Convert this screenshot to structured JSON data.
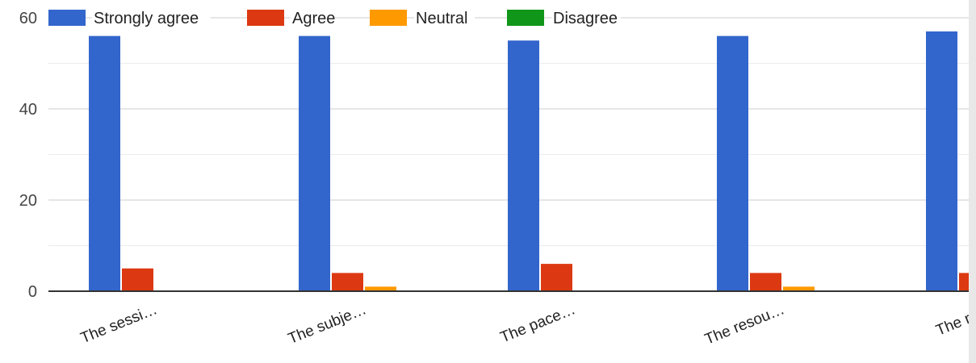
{
  "chart_data": {
    "type": "bar",
    "categories": [
      "The sessi…",
      "The subje…",
      "The pace…",
      "The resou…",
      "The reso"
    ],
    "series": [
      {
        "name": "Strongly agree",
        "color": "#3366cc",
        "values": [
          56,
          56,
          55,
          56,
          57
        ]
      },
      {
        "name": "Agree",
        "color": "#dc3912",
        "values": [
          5,
          4,
          6,
          4,
          4
        ]
      },
      {
        "name": "Neutral",
        "color": "#ff9900",
        "values": [
          0,
          1,
          0,
          1,
          0
        ]
      },
      {
        "name": "Disagree",
        "color": "#109618",
        "values": [
          0,
          0,
          0,
          0,
          0
        ]
      }
    ],
    "ylim": [
      0,
      60
    ],
    "yticks": [
      0,
      20,
      40,
      60
    ],
    "grid": true,
    "legend_position": "top-left"
  }
}
